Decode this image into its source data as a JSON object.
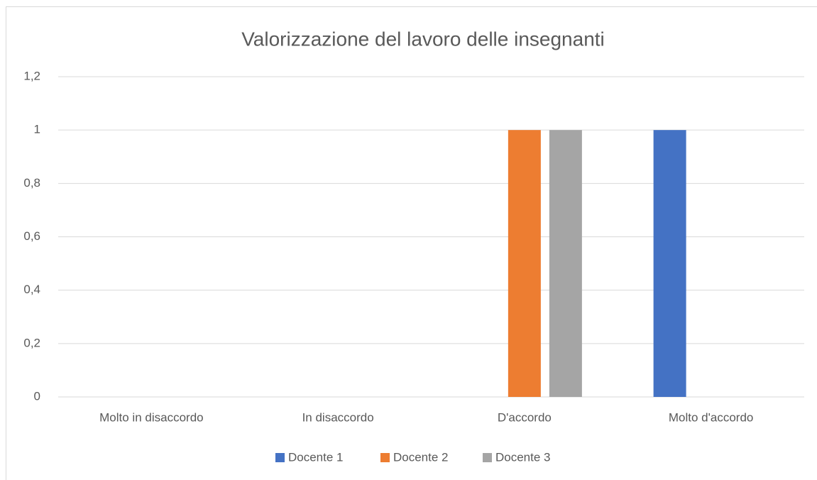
{
  "chart_data": {
    "type": "bar",
    "title": "Valorizzazione del lavoro delle insegnanti",
    "categories": [
      "Molto in disaccordo",
      "In disaccordo",
      "D'accordo",
      "Molto d'accordo"
    ],
    "series": [
      {
        "name": "Docente 1",
        "color": "#4472c4",
        "values": [
          0,
          0,
          0,
          1
        ]
      },
      {
        "name": "Docente 2",
        "color": "#ed7d31",
        "values": [
          0,
          0,
          1,
          0
        ]
      },
      {
        "name": "Docente 3",
        "color": "#a5a5a5",
        "values": [
          0,
          0,
          1,
          0
        ]
      }
    ],
    "ylim": [
      0,
      1.2
    ],
    "yticks": [
      0,
      {
        "value": 0.2,
        "label": "0,2"
      },
      {
        "value": 0.4,
        "label": "0,4"
      },
      {
        "value": 0.6,
        "label": "0,6"
      },
      {
        "value": 0.8,
        "label": "0,8"
      },
      1,
      {
        "value": 1.2,
        "label": "1,2"
      }
    ],
    "grid": true,
    "legend": "bottom"
  }
}
